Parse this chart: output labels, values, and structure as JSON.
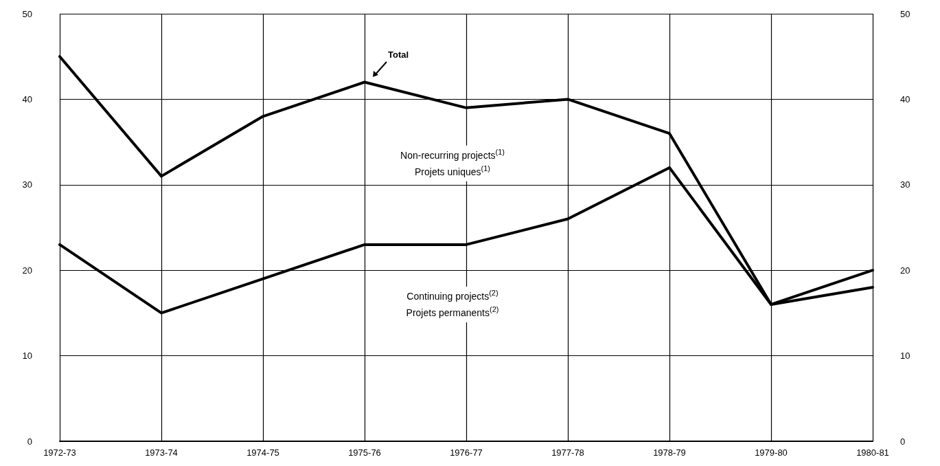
{
  "chart_data": {
    "type": "line",
    "categories": [
      "1972-73",
      "1973-74",
      "1974-75",
      "1975-76",
      "1976-77",
      "1977-78",
      "1978-79",
      "1979-80",
      "1980-81"
    ],
    "series": [
      {
        "name": "Total",
        "color": "#000000",
        "values": [
          45,
          31,
          38,
          42,
          39,
          40,
          36,
          16,
          20
        ]
      },
      {
        "color": "#000000",
        "values": [
          23,
          15,
          19,
          23,
          23,
          26,
          32,
          16,
          18
        ]
      }
    ],
    "ylim": [
      0,
      50
    ],
    "yticks": [
      0,
      10,
      20,
      30,
      40,
      50
    ],
    "y2lim": [
      0,
      50
    ],
    "y2ticks": [
      0,
      10,
      20,
      30,
      40,
      50
    ],
    "annotations": [
      "Non-recurring projects$^{(1)}$\nProjets uniques$^{(1)}$",
      "Continuing projects$^{(2)}$\nProjets permanents$^{(2)}$"
    ],
    "grid": true,
    "marker": "none",
    "line_style": "solid",
    "legend": false
  }
}
